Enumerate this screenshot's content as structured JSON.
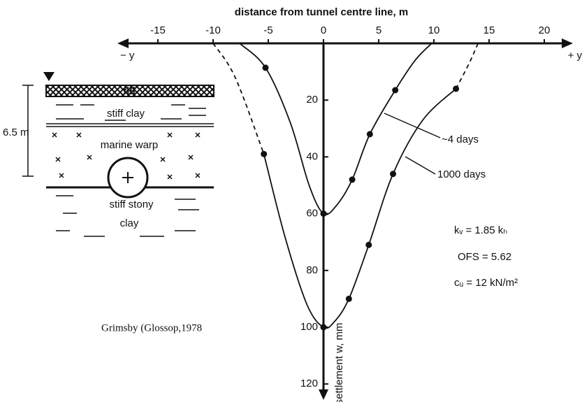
{
  "chart_data": {
    "type": "line",
    "title": "distance from tunnel centre line, m",
    "ylabel": "settlement w, mm",
    "x_axis_ends": [
      "− y",
      "+ y"
    ],
    "xlim": [
      -18.5,
      22.5
    ],
    "xticks": [
      -15,
      -10,
      -5,
      0,
      5,
      10,
      15,
      20
    ],
    "ylim": [
      0,
      126
    ],
    "yticks": [
      20,
      40,
      60,
      80,
      100,
      120
    ],
    "y_inverted": true,
    "color": "#111111",
    "series": [
      {
        "name": "~4 days",
        "x": [
          -5.25,
          0,
          2.6,
          4.2,
          6.5
        ],
        "values": [
          8.6,
          60,
          48,
          32,
          16.5
        ],
        "curve": {
          "x": [
            -7.6,
            -5.25,
            -3,
            -1.3,
            0,
            1.2,
            2.6,
            4.2,
            6.5,
            8.3,
            9.8
          ],
          "values": [
            0,
            8.6,
            28,
            50,
            60,
            57,
            48,
            32,
            16.5,
            6,
            0
          ]
        },
        "dashed": []
      },
      {
        "name": "1000 days",
        "x": [
          -5.4,
          0,
          2.3,
          4.1,
          6.3,
          12
        ],
        "values": [
          39,
          100,
          90,
          71,
          46,
          16
        ],
        "curve": {
          "x": [
            -5.4,
            -3.5,
            -1.5,
            0,
            1,
            2.3,
            4.1,
            6.3,
            9,
            12
          ],
          "values": [
            39,
            68,
            92,
            100,
            98,
            90,
            71,
            46,
            27,
            16
          ]
        },
        "dashed": [
          {
            "x": [
              -10,
              -8,
              -5.4
            ],
            "values": [
              0,
              12,
              39
            ]
          },
          {
            "x": [
              12,
              13.2,
              14
            ],
            "values": [
              16,
              7,
              0
            ]
          }
        ]
      }
    ],
    "annotations": [
      "kᵥ = 1.85 kₕ",
      "OFS = 5.62",
      "cᵤ = 12 kN/m²"
    ],
    "source": "Grimsby (Glossop,1978"
  },
  "inset": {
    "layers": [
      "fill",
      "stiff clay",
      "marine warp",
      "stiff stony",
      "clay"
    ],
    "depth": "6.5 m"
  }
}
